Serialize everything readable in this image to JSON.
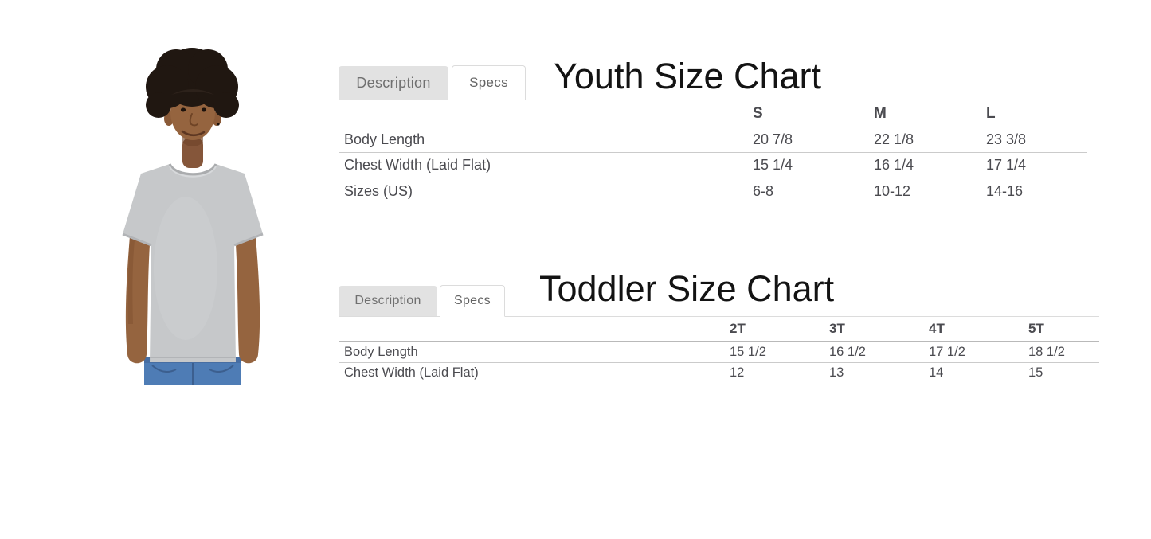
{
  "photo": {
    "description": "Boy model wearing heather gray t-shirt and blue jeans",
    "colors": {
      "shirt": "#c6c8ca",
      "shirt_shade": "#b2b4b7",
      "jeans": "#4e7cb5",
      "jeans_seam": "#3c5f8f",
      "skin": "#95643f",
      "skin_shade": "#7c4e2f",
      "hair": "#201711"
    }
  },
  "charts": [
    {
      "id": "youth",
      "title": "Youth Size Chart",
      "tabs": [
        {
          "label": "Description",
          "active": false
        },
        {
          "label": "Specs",
          "active": true
        }
      ],
      "table": {
        "columns": [
          "S",
          "M",
          "L"
        ],
        "rows": [
          {
            "label": "Body Length",
            "values": [
              "20 7/8",
              "22 1/8",
              "23 3/8"
            ]
          },
          {
            "label": "Chest Width (Laid Flat)",
            "values": [
              "15 1/4",
              "16 1/4",
              "17 1/4"
            ]
          },
          {
            "label": "Sizes (US)",
            "values": [
              "6-8",
              "10-12",
              "14-16"
            ]
          }
        ]
      }
    },
    {
      "id": "toddler",
      "title": "Toddler Size Chart",
      "tabs": [
        {
          "label": "Description",
          "active": false
        },
        {
          "label": "Specs",
          "active": true
        }
      ],
      "table": {
        "columns": [
          "2T",
          "3T",
          "4T",
          "5T"
        ],
        "rows": [
          {
            "label": "Body Length",
            "values": [
              "15 1/2",
              "16 1/2",
              "17 1/2",
              "18 1/2"
            ]
          },
          {
            "label": "Chest Width (Laid Flat)",
            "values": [
              "12",
              "13",
              "14",
              "15"
            ]
          }
        ]
      }
    }
  ]
}
